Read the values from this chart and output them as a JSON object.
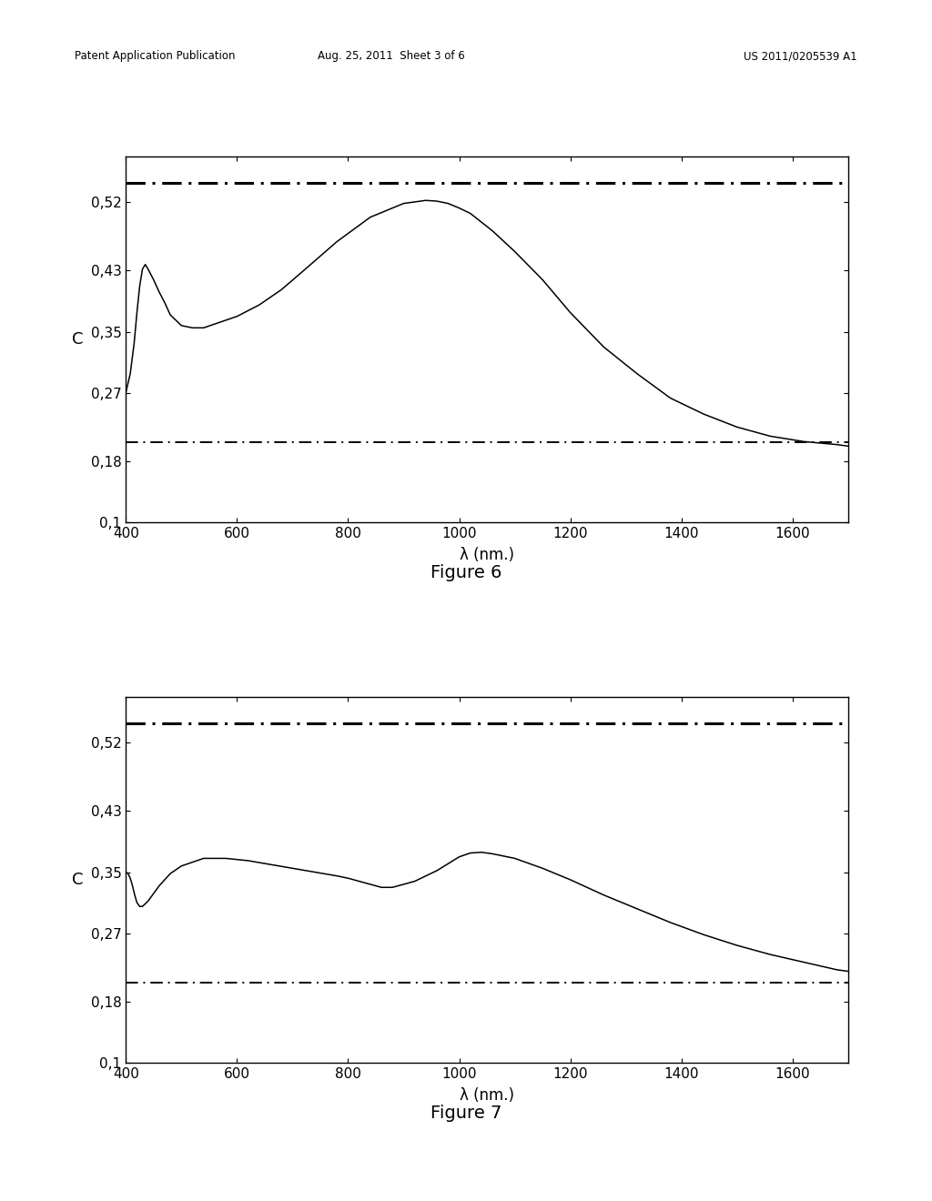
{
  "header_left": "Patent Application Publication",
  "header_mid": "Aug. 25, 2011  Sheet 3 of 6",
  "header_right": "US 2011/0205539 A1",
  "fig6_title": "Figure 6",
  "fig7_title": "Figure 7",
  "xlabel": "λ (nm.)",
  "ylabel": "C",
  "xlim": [
    400,
    1700
  ],
  "ylim": [
    0.1,
    0.58
  ],
  "yticks": [
    0.1,
    0.18,
    0.27,
    0.35,
    0.43,
    0.52
  ],
  "xticks": [
    400,
    600,
    800,
    1000,
    1200,
    1400,
    1600
  ],
  "upper_dashdot": 0.545,
  "lower_dashdot": 0.205,
  "bg_color": "#ffffff",
  "line_color": "#000000",
  "fig6_curve_x": [
    400,
    408,
    415,
    420,
    425,
    430,
    435,
    440,
    450,
    460,
    470,
    480,
    500,
    520,
    540,
    560,
    580,
    600,
    640,
    680,
    720,
    780,
    840,
    900,
    940,
    960,
    980,
    1000,
    1020,
    1060,
    1100,
    1150,
    1200,
    1260,
    1320,
    1380,
    1440,
    1500,
    1560,
    1620,
    1680,
    1700
  ],
  "fig6_curve_y": [
    0.27,
    0.295,
    0.335,
    0.375,
    0.41,
    0.432,
    0.438,
    0.432,
    0.418,
    0.402,
    0.388,
    0.372,
    0.358,
    0.355,
    0.355,
    0.36,
    0.365,
    0.37,
    0.385,
    0.405,
    0.43,
    0.468,
    0.5,
    0.518,
    0.522,
    0.521,
    0.518,
    0.512,
    0.505,
    0.482,
    0.455,
    0.418,
    0.375,
    0.33,
    0.295,
    0.263,
    0.242,
    0.225,
    0.213,
    0.206,
    0.202,
    0.2
  ],
  "fig7_curve_x": [
    400,
    404,
    408,
    412,
    416,
    420,
    425,
    430,
    440,
    450,
    460,
    480,
    500,
    540,
    580,
    620,
    660,
    700,
    740,
    780,
    800,
    820,
    840,
    860,
    880,
    920,
    960,
    1000,
    1020,
    1040,
    1060,
    1100,
    1150,
    1200,
    1260,
    1320,
    1380,
    1440,
    1500,
    1560,
    1620,
    1680,
    1700
  ],
  "fig7_curve_y": [
    0.35,
    0.348,
    0.342,
    0.332,
    0.32,
    0.31,
    0.305,
    0.305,
    0.312,
    0.322,
    0.332,
    0.348,
    0.358,
    0.368,
    0.368,
    0.365,
    0.36,
    0.355,
    0.35,
    0.345,
    0.342,
    0.338,
    0.334,
    0.33,
    0.33,
    0.338,
    0.352,
    0.37,
    0.375,
    0.376,
    0.374,
    0.368,
    0.355,
    0.34,
    0.32,
    0.302,
    0.284,
    0.268,
    0.254,
    0.242,
    0.232,
    0.222,
    0.22
  ]
}
